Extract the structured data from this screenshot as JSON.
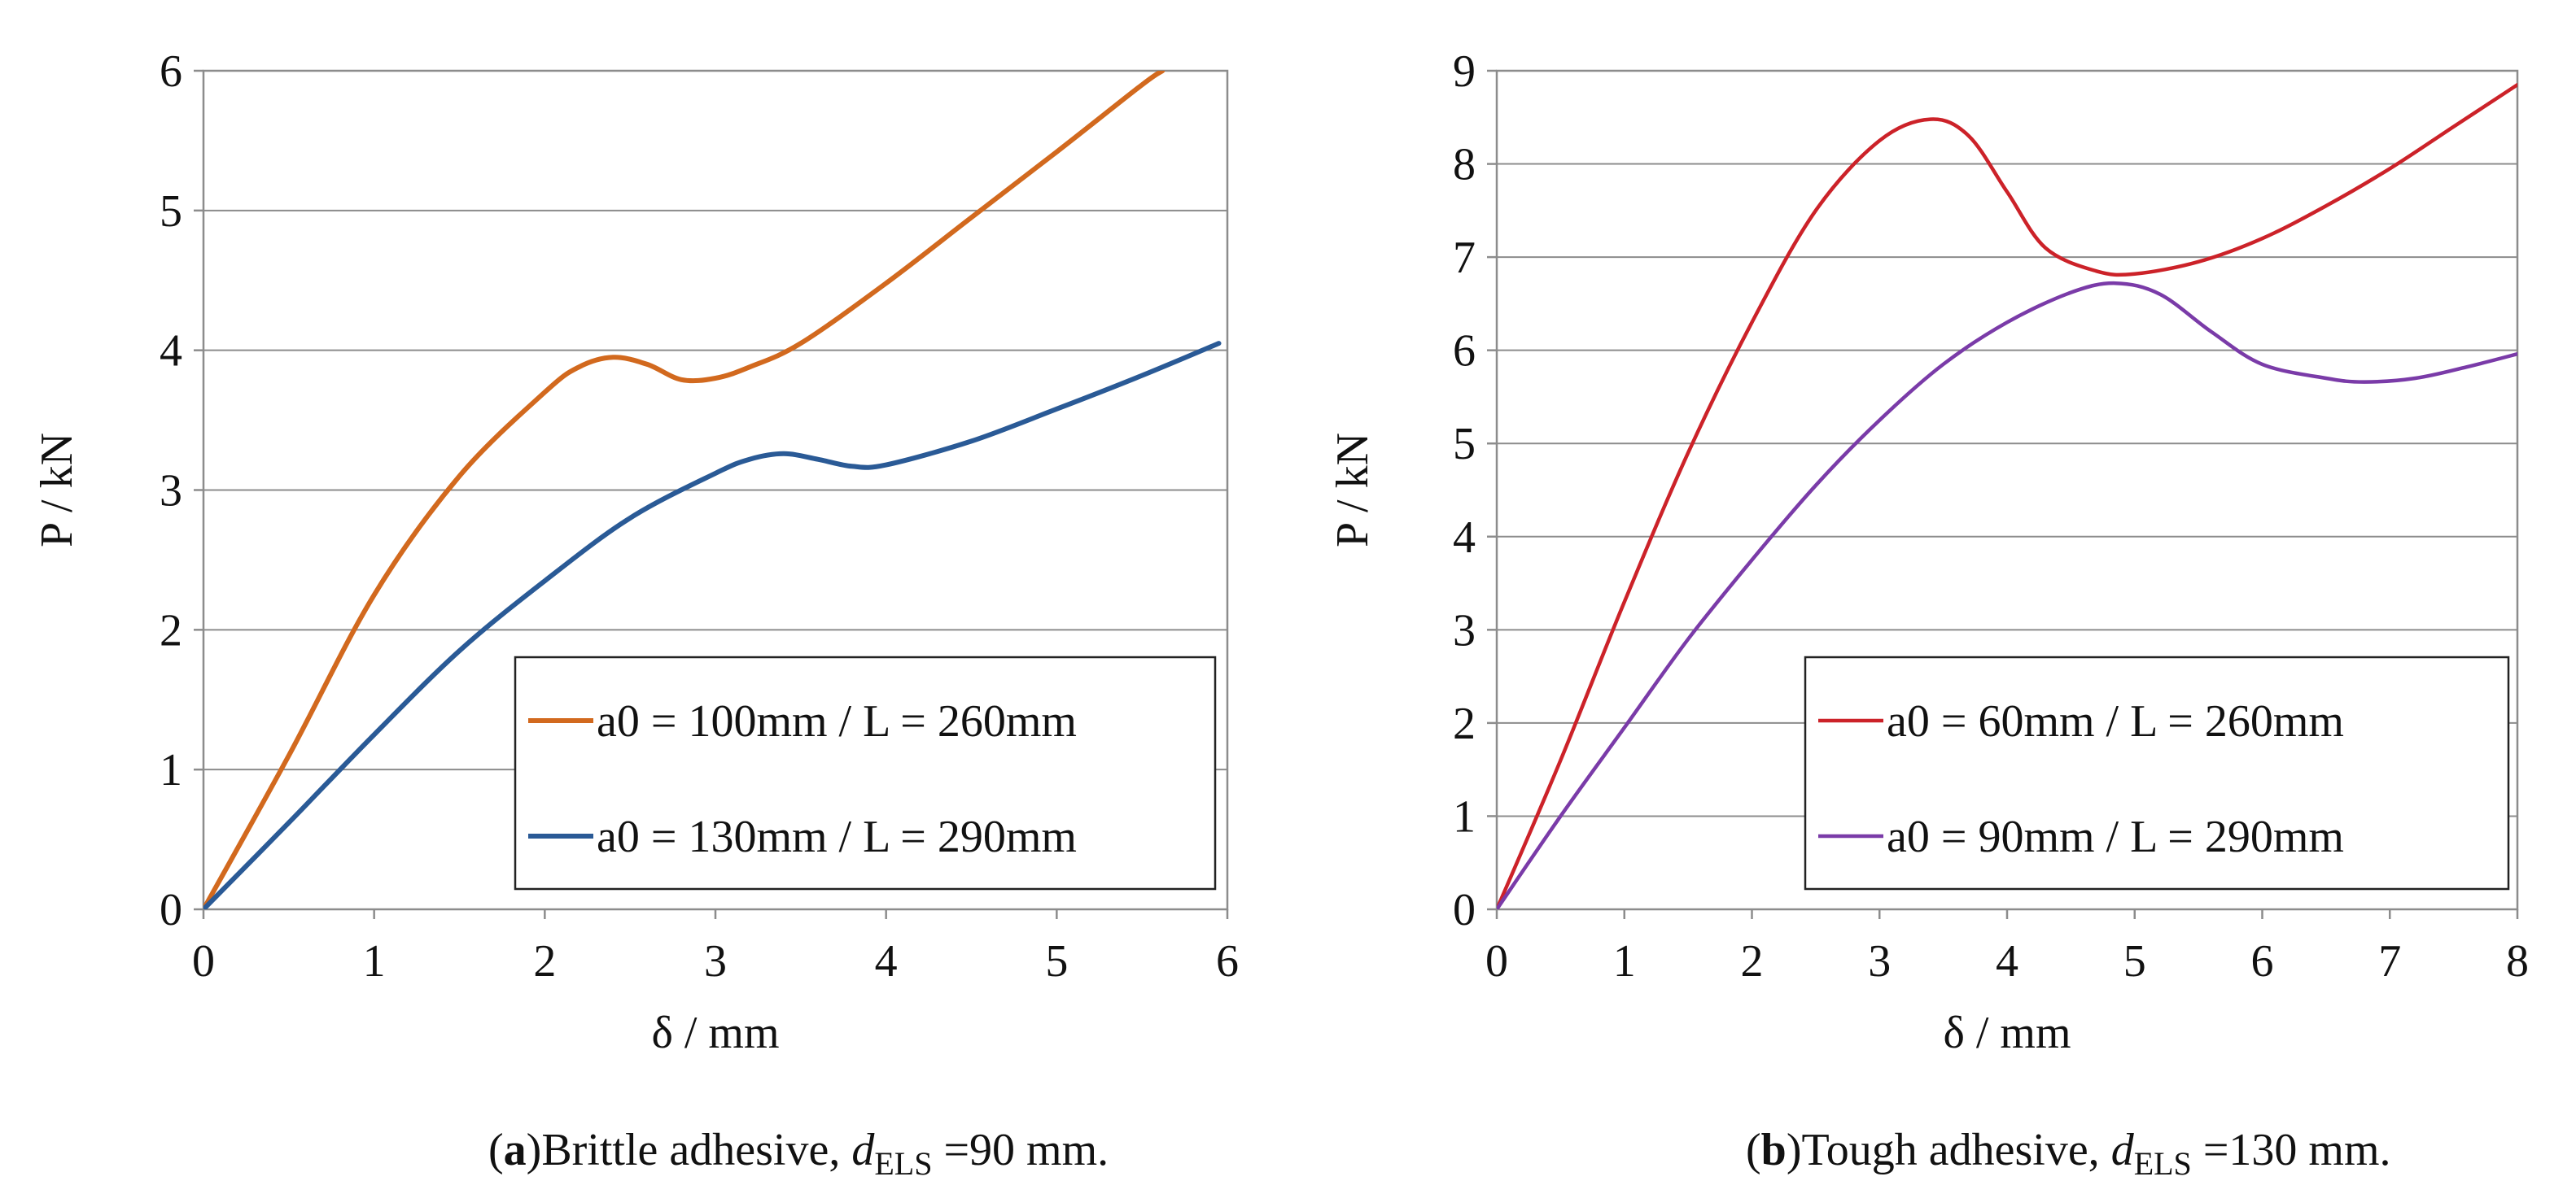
{
  "chart_data": [
    {
      "type": "line",
      "caption": {
        "label": "a",
        "text": "Brittle adhesive, ",
        "var": "d",
        "sub": "ELS",
        "rest": " =90 mm."
      },
      "xlabel": "δ / mm",
      "ylabel": "P / kN",
      "xlim": [
        0,
        6
      ],
      "ylim": [
        0,
        6
      ],
      "xticks": [
        "0",
        "1",
        "2",
        "3",
        "4",
        "5",
        "6"
      ],
      "yticks": [
        "0",
        "1",
        "2",
        "3",
        "4",
        "5",
        "6"
      ],
      "grid": "horizontal",
      "legend_position": "bottom-right",
      "series": [
        {
          "name": "a0 = 100mm / L = 260mm",
          "color": "#d2691e",
          "x": [
            0,
            0.5,
            1.0,
            1.5,
            2.0,
            2.2,
            2.4,
            2.6,
            2.8,
            3.0,
            3.2,
            3.5,
            4.0,
            4.5,
            5.0,
            5.5,
            5.62
          ],
          "y": [
            0,
            1.1,
            2.25,
            3.1,
            3.7,
            3.88,
            3.95,
            3.9,
            3.79,
            3.8,
            3.88,
            4.05,
            4.48,
            4.95,
            5.42,
            5.9,
            6.0
          ]
        },
        {
          "name": "a0 = 130mm / L = 290mm",
          "color": "#2a5a96",
          "x": [
            0,
            0.5,
            1.0,
            1.5,
            2.0,
            2.5,
            3.0,
            3.2,
            3.4,
            3.6,
            3.8,
            4.0,
            4.5,
            5.0,
            5.5,
            5.95
          ],
          "y": [
            0,
            0.62,
            1.25,
            1.85,
            2.35,
            2.8,
            3.12,
            3.22,
            3.26,
            3.22,
            3.17,
            3.18,
            3.35,
            3.58,
            3.82,
            4.05
          ]
        }
      ]
    },
    {
      "type": "line",
      "caption": {
        "label": "b",
        "text": "Tough adhesive, ",
        "var": "d",
        "sub": "ELS",
        "rest": " =130 mm."
      },
      "xlabel": "δ / mm",
      "ylabel": "P / kN",
      "xlim": [
        0,
        8
      ],
      "ylim": [
        0,
        9
      ],
      "xticks": [
        "0",
        "1",
        "2",
        "3",
        "4",
        "5",
        "6",
        "7",
        "8"
      ],
      "yticks": [
        "0",
        "1",
        "2",
        "3",
        "4",
        "5",
        "6",
        "7",
        "8",
        "9"
      ],
      "grid": "horizontal",
      "legend_position": "bottom-right",
      "series": [
        {
          "name": "a0 = 60mm / L = 260mm",
          "color": "#cc2229",
          "x": [
            0,
            0.5,
            1.0,
            1.5,
            2.0,
            2.5,
            3.0,
            3.4,
            3.7,
            4.0,
            4.3,
            4.7,
            5.0,
            5.5,
            6.0,
            6.5,
            7.0,
            7.5,
            8.0
          ],
          "y": [
            0,
            1.6,
            3.3,
            4.9,
            6.3,
            7.5,
            8.25,
            8.48,
            8.3,
            7.7,
            7.1,
            6.85,
            6.82,
            6.95,
            7.2,
            7.55,
            7.95,
            8.4,
            8.85
          ]
        },
        {
          "name": "a0 = 90mm / L = 290mm",
          "color": "#7a3ba8",
          "x": [
            0,
            0.5,
            1.0,
            1.5,
            2.0,
            2.5,
            3.0,
            3.5,
            4.0,
            4.5,
            4.85,
            5.2,
            5.6,
            6.0,
            6.5,
            6.8,
            7.2,
            7.6,
            8.0
          ],
          "y": [
            0,
            1.0,
            1.95,
            2.9,
            3.75,
            4.55,
            5.25,
            5.85,
            6.3,
            6.62,
            6.72,
            6.6,
            6.2,
            5.85,
            5.7,
            5.66,
            5.7,
            5.82,
            5.96
          ]
        }
      ]
    }
  ]
}
